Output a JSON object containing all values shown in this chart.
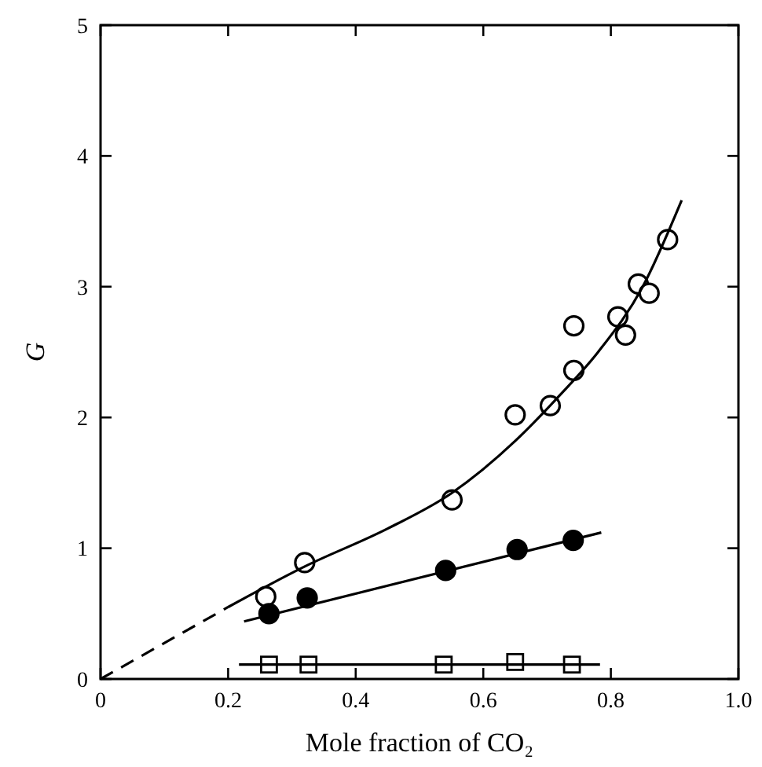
{
  "chart_data": {
    "type": "scatter",
    "xlabel": "Mole fraction of CO₂",
    "ylabel": "G",
    "xlim": [
      0,
      1
    ],
    "ylim": [
      0,
      5
    ],
    "xticks": [
      0,
      0.2,
      0.4,
      0.6,
      0.8,
      {
        "value": 1,
        "label": "1.0"
      }
    ],
    "yticks": [
      0,
      1,
      2,
      3,
      4,
      5
    ],
    "grid": false,
    "series": [
      {
        "marker": "circle",
        "color": "#000000",
        "colors": [
          "#ffffff",
          "#ffffff",
          "#ffffff",
          "#ffffff",
          "#ffffff",
          "#ffffff",
          "#ffffff",
          "#ffffff",
          "#ffffff",
          "#ffffff",
          "#ffffff",
          "#ffffff"
        ],
        "x": [
          0.259,
          0.32,
          0.551,
          0.65,
          0.705,
          0.742,
          0.742,
          0.811,
          0.823,
          0.843,
          0.86,
          0.889
        ],
        "values": [
          0.63,
          0.89,
          1.37,
          2.02,
          2.09,
          2.7,
          2.36,
          2.77,
          2.63,
          3.02,
          2.95,
          3.36
        ]
      },
      {
        "marker": "circle",
        "color": "#000000",
        "x": [
          0.264,
          0.324,
          0.541,
          0.653,
          0.741
        ],
        "values": [
          0.5,
          0.62,
          0.83,
          0.99,
          1.06
        ]
      },
      {
        "marker": "square",
        "color": "#000000",
        "colors": [
          "#ffffff",
          "#ffffff",
          "#ffffff",
          "#ffffff",
          "#ffffff"
        ],
        "x": [
          0.264,
          0.326,
          0.538,
          0.65,
          0.739
        ],
        "values": [
          0.11,
          0.11,
          0.11,
          0.13,
          0.11
        ]
      },
      {
        "type": "line",
        "line_style": "dashed",
        "color": "#000000",
        "x": [
          0,
          0.2
        ],
        "values": [
          0,
          0.55
        ]
      },
      {
        "type": "line",
        "line_style": "solid",
        "color": "#000000",
        "x": [
          0.2,
          0.32,
          0.45,
          0.55,
          0.65,
          0.72,
          0.78,
          0.85,
          0.911
        ],
        "values": [
          0.55,
          0.86,
          1.15,
          1.42,
          1.82,
          2.17,
          2.5,
          3.0,
          3.66
        ]
      },
      {
        "type": "line",
        "line_style": "solid",
        "color": "#000000",
        "x": [
          0.225,
          0.785
        ],
        "values": [
          0.44,
          1.12
        ]
      },
      {
        "type": "line",
        "line_style": "solid",
        "color": "#000000",
        "x": [
          0.217,
          0.783
        ],
        "values": [
          0.11,
          0.11
        ]
      }
    ]
  }
}
